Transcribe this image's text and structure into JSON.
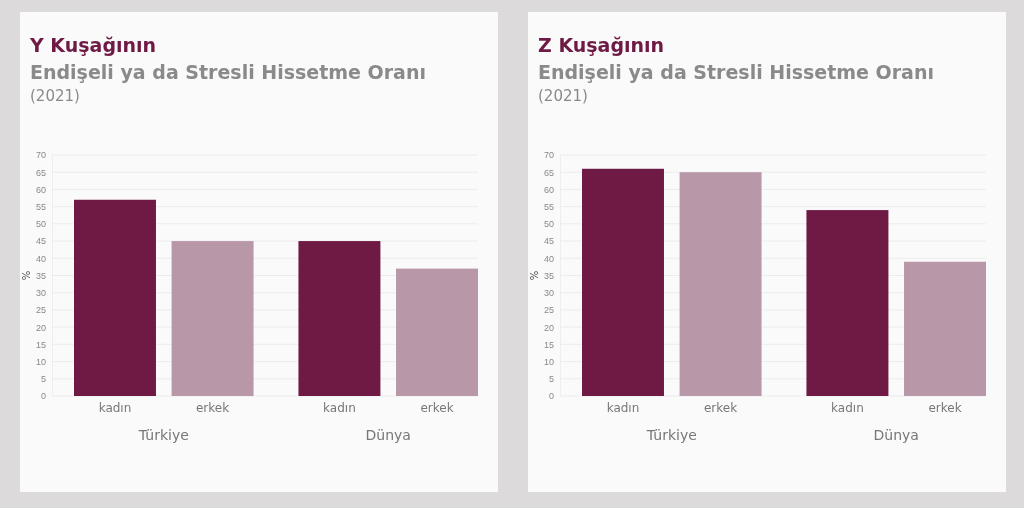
{
  "chart_data": [
    {
      "type": "bar",
      "title": "Y Kuşağının",
      "subtitle": "Endişeli ya da Stresli Hissetme Oranı",
      "annotations": [
        "(2021)"
      ],
      "ylabel": "%",
      "categories": [
        "Türkiye",
        "Dünya"
      ],
      "series": [
        {
          "name": "kadın",
          "color": "#6e1a45",
          "values": [
            57,
            45
          ]
        },
        {
          "name": "erkek",
          "color": "#b897a8",
          "values": [
            45,
            37
          ]
        }
      ],
      "ylim": [
        0,
        70
      ],
      "yticks": [
        0,
        5,
        10,
        15,
        20,
        25,
        30,
        35,
        40,
        45,
        50,
        55,
        60,
        65,
        70
      ],
      "grid": "y",
      "legend": false
    },
    {
      "type": "bar",
      "title": "Z Kuşağının",
      "subtitle": "Endişeli ya da Stresli Hissetme Oranı",
      "annotations": [
        "(2021)"
      ],
      "ylabel": "%",
      "categories": [
        "Türkiye",
        "Dünya"
      ],
      "series": [
        {
          "name": "kadın",
          "color": "#6e1a45",
          "values": [
            66,
            54
          ]
        },
        {
          "name": "erkek",
          "color": "#b897a8",
          "values": [
            65,
            39
          ]
        }
      ],
      "ylim": [
        0,
        70
      ],
      "yticks": [
        0,
        5,
        10,
        15,
        20,
        25,
        30,
        35,
        40,
        45,
        50,
        55,
        60,
        65,
        70
      ],
      "grid": "y",
      "legend": false
    }
  ]
}
